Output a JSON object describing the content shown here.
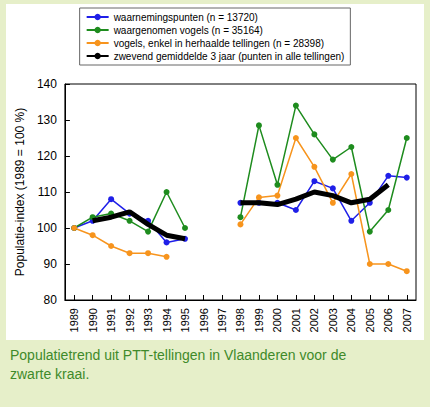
{
  "chart_data": {
    "type": "line",
    "y_label": "Populatie-index (1989 = 100 %)",
    "caption": "Populatietrend uit PTT-tellingen in Vlaanderen voor de zwarte kraai.",
    "categories": [
      "1989",
      "1990",
      "1991",
      "1992",
      "1993",
      "1994",
      "1995",
      "1996",
      "1997",
      "1998",
      "1999",
      "2000",
      "2001",
      "2002",
      "2003",
      "2004",
      "2005",
      "2006",
      "2007"
    ],
    "series": [
      {
        "name": "waarnemingspunten (n = 13720)",
        "color": "#1f1fe8",
        "marker": "circle",
        "line_style": "solid",
        "values": [
          100,
          102,
          108,
          104,
          102,
          96,
          97,
          null,
          null,
          107,
          107,
          107,
          105,
          113,
          111,
          102,
          107,
          114.5,
          114
        ]
      },
      {
        "name": "waargenomen vogels (n = 35164)",
        "color": "#1e8c1e",
        "marker": "circle",
        "line_style": "solid",
        "values": [
          100,
          103,
          104,
          102,
          99,
          110,
          100,
          null,
          null,
          103,
          128.5,
          112,
          134,
          126,
          119,
          122.5,
          99,
          105,
          125
        ]
      },
      {
        "name": "vogels, enkel in herhaalde tellingen (n = 28398)",
        "color": "#f7941d",
        "marker": "circle",
        "line_style": "solid",
        "values": [
          100,
          98,
          95,
          93,
          93,
          92,
          null,
          null,
          null,
          101,
          108.5,
          109,
          125,
          117,
          107,
          115,
          90,
          90,
          88
        ]
      },
      {
        "name": "zwevend gemiddelde 3 jaar (punten in alle tellingen)",
        "color": "#000000",
        "marker": "none",
        "line_style": "solid",
        "values": [
          null,
          102,
          103,
          104.5,
          101,
          98,
          97,
          null,
          null,
          107,
          107,
          106.5,
          108,
          110,
          109,
          107,
          108,
          112,
          null
        ]
      }
    ],
    "ylim": [
      80,
      140
    ],
    "yticks": [
      80,
      90,
      100,
      110,
      120,
      130,
      140
    ],
    "grid": false,
    "legend": "top"
  }
}
